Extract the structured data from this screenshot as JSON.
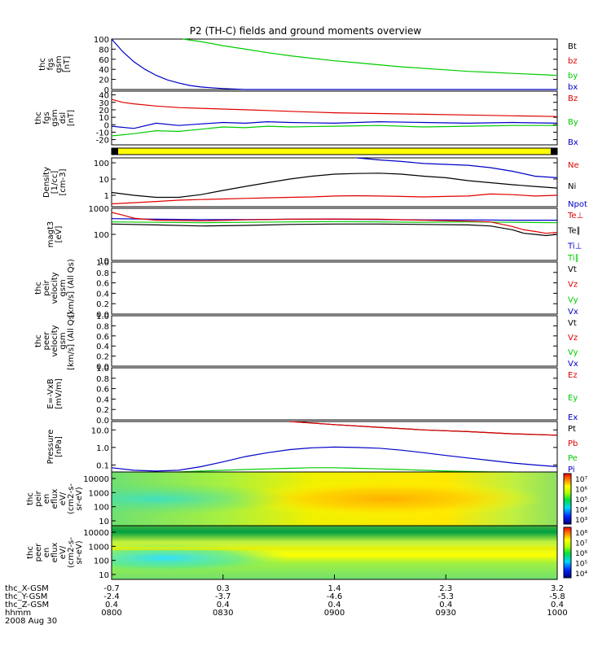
{
  "title": "P2 (TH-C) fields and ground moments overview",
  "colors": {
    "black": "#000000",
    "red": "#e00000",
    "green": "#00cc00",
    "blue": "#0000c8",
    "yellow": "#ffff00"
  },
  "chart_data": [
    {
      "type": "line",
      "label": "thc fgs gsm [nT]",
      "ylabel_lines": [
        "thc",
        "fgs",
        "gsm",
        "[nT]"
      ],
      "ylim": [
        0,
        100
      ],
      "yticks": [
        "100",
        "80",
        "60",
        "40",
        "20",
        "0"
      ],
      "ytick_vals": [
        100,
        80,
        60,
        40,
        20,
        0
      ],
      "legend": [
        {
          "text": "Bt",
          "color": "#000000"
        },
        {
          "text": "bz",
          "color": "#e00000"
        },
        {
          "text": "by",
          "color": "#00cc00"
        },
        {
          "text": "bx",
          "color": "#0000c8"
        }
      ],
      "series": [
        {
          "name": "by",
          "color": "#00cc00",
          "x": [
            0.32,
            0.4,
            0.5,
            0.6,
            0.7,
            0.8,
            0.9,
            1.0,
            1.1,
            1.2,
            1.3,
            1.4,
            1.5,
            1.6,
            1.7,
            1.8,
            1.9,
            2.0
          ],
          "y": [
            100,
            95,
            87,
            80,
            73,
            67,
            62,
            57,
            53,
            49,
            45,
            42,
            39,
            36,
            34,
            32,
            30,
            28
          ]
        },
        {
          "name": "bx",
          "color": "#0000c8",
          "x": [
            0.0,
            0.05,
            0.1,
            0.15,
            0.2,
            0.25,
            0.3,
            0.35,
            0.4,
            0.5,
            0.6,
            0.8,
            1.0,
            1.5,
            2.0
          ],
          "y": [
            100,
            75,
            55,
            40,
            28,
            19,
            13,
            8,
            5,
            2,
            0,
            -1,
            -1,
            -1,
            -1
          ]
        }
      ]
    },
    {
      "type": "line",
      "label": "thc fgs gsm dsl [nT]",
      "ylabel_lines": [
        "thc",
        "fgs",
        "gsm",
        "dsl",
        "[nT]"
      ],
      "ylim": [
        -27,
        45
      ],
      "yticks": [
        "40",
        "30",
        "20",
        "10",
        "0",
        "-10",
        "-20"
      ],
      "ytick_vals": [
        40,
        30,
        20,
        10,
        0,
        -10,
        -20
      ],
      "legend": [
        {
          "text": "Bz",
          "color": "#e00000"
        },
        {
          "text": "By",
          "color": "#00cc00"
        },
        {
          "text": "Bx",
          "color": "#0000c8"
        }
      ],
      "series": [
        {
          "name": "Bz",
          "color": "#e00000",
          "x": [
            0.0,
            0.05,
            0.1,
            0.2,
            0.3,
            0.4,
            0.5,
            0.6,
            0.7,
            0.8,
            0.9,
            1.0,
            1.2,
            1.4,
            1.6,
            1.8,
            2.0
          ],
          "y": [
            34,
            30,
            28,
            25,
            23,
            22,
            21,
            20,
            19,
            18,
            17,
            16,
            15,
            14,
            13,
            12,
            11
          ]
        },
        {
          "name": "By",
          "color": "#00cc00",
          "x": [
            0.0,
            0.1,
            0.2,
            0.3,
            0.4,
            0.5,
            0.6,
            0.7,
            0.8,
            1.0,
            1.2,
            1.4,
            1.6,
            1.8,
            2.0
          ],
          "y": [
            -15,
            -12,
            -8,
            -9,
            -6,
            -3,
            -4,
            -2,
            -3,
            -2,
            -1,
            -3,
            -2,
            -1,
            -1
          ]
        },
        {
          "name": "Bx",
          "color": "#0000c8",
          "x": [
            0.0,
            0.1,
            0.2,
            0.3,
            0.4,
            0.5,
            0.6,
            0.7,
            0.8,
            1.0,
            1.2,
            1.4,
            1.6,
            1.8,
            2.0
          ],
          "y": [
            -2,
            -5,
            2,
            -1,
            1,
            3,
            2,
            4,
            3,
            2,
            4,
            3,
            2,
            3,
            2
          ]
        }
      ]
    },
    {
      "type": "line",
      "label": "Density [1/cc] [cm-3]",
      "log": true,
      "ylabel_lines": [
        "Density",
        "[1/cc]",
        "[cm-3]"
      ],
      "ylim": [
        0.2,
        200
      ],
      "yticks": [
        "100",
        "10",
        "1"
      ],
      "ytick_vals": [
        100,
        10,
        1
      ],
      "legend": [
        {
          "text": "Ne",
          "color": "#e00000"
        },
        {
          "text": "Ni",
          "color": "#000000"
        },
        {
          "text": "Npot",
          "color": "#0000c8"
        }
      ],
      "series": [
        {
          "name": "Ni",
          "color": "#000000",
          "x": [
            0.0,
            0.1,
            0.2,
            0.3,
            0.4,
            0.5,
            0.6,
            0.7,
            0.8,
            0.9,
            1.0,
            1.1,
            1.2,
            1.3,
            1.4,
            1.5,
            1.6,
            1.7,
            1.8,
            1.9,
            2.0
          ],
          "y": [
            1.5,
            1.0,
            0.75,
            0.75,
            1.1,
            2.0,
            3.5,
            6,
            10,
            15,
            20,
            22,
            23,
            20,
            15,
            12,
            8,
            6,
            4.5,
            3.5,
            2.8
          ]
        },
        {
          "name": "Ne",
          "color": "#e00000",
          "x": [
            0.0,
            0.1,
            0.2,
            0.3,
            0.4,
            0.5,
            0.6,
            0.7,
            0.8,
            0.9,
            1.0,
            1.1,
            1.2,
            1.3,
            1.4,
            1.5,
            1.6,
            1.7,
            1.8,
            1.9,
            2.0
          ],
          "y": [
            0.3,
            0.35,
            0.42,
            0.5,
            0.55,
            0.6,
            0.65,
            0.7,
            0.75,
            0.8,
            0.9,
            0.95,
            0.9,
            0.85,
            0.8,
            0.85,
            0.9,
            1.2,
            1.1,
            0.9,
            1.0
          ]
        },
        {
          "name": "Npot",
          "color": "#0000c8",
          "x": [
            1.1,
            1.2,
            1.3,
            1.4,
            1.5,
            1.6,
            1.7,
            1.8,
            1.9,
            2.0
          ],
          "y": [
            200,
            150,
            120,
            90,
            80,
            70,
            50,
            30,
            15,
            12
          ]
        }
      ]
    },
    {
      "type": "line",
      "label": "magt3 [eV]",
      "log": true,
      "ylabel_lines": [
        "magt3",
        "[eV]"
      ],
      "ylim": [
        10,
        1000
      ],
      "yticks": [
        "1000",
        "100",
        "10"
      ],
      "ytick_vals": [
        1000,
        100,
        10
      ],
      "legend": [
        {
          "text": "Te⊥",
          "color": "#e00000"
        },
        {
          "text": "Te∥",
          "color": "#000000"
        },
        {
          "text": "Ti⊥",
          "color": "#0000c8"
        },
        {
          "text": "Ti∥",
          "color": "#00cc00"
        }
      ],
      "series": [
        {
          "name": "Ti⊥",
          "color": "#0000c8",
          "x": [
            0.0,
            0.2,
            0.4,
            0.6,
            0.8,
            1.0,
            1.2,
            1.4,
            1.6,
            1.8,
            2.0
          ],
          "y": [
            400,
            380,
            370,
            370,
            380,
            380,
            370,
            360,
            360,
            350,
            350
          ]
        },
        {
          "name": "Ti∥",
          "color": "#00cc00",
          "x": [
            0.0,
            0.2,
            0.4,
            0.6,
            0.8,
            1.0,
            1.2,
            1.4,
            1.6,
            1.8,
            2.0
          ],
          "y": [
            300,
            290,
            280,
            290,
            300,
            310,
            300,
            290,
            300,
            290,
            280
          ]
        },
        {
          "name": "Te⊥",
          "color": "#e00000",
          "x": [
            0.0,
            0.05,
            0.1,
            0.2,
            0.4,
            0.6,
            0.8,
            1.0,
            1.2,
            1.4,
            1.6,
            1.7,
            1.8,
            1.85,
            1.9,
            1.95,
            2.0
          ],
          "y": [
            700,
            550,
            420,
            350,
            330,
            360,
            380,
            390,
            380,
            350,
            320,
            300,
            200,
            150,
            130,
            110,
            120
          ]
        },
        {
          "name": "Te∥",
          "color": "#000000",
          "x": [
            0.0,
            0.2,
            0.4,
            0.6,
            0.8,
            1.0,
            1.2,
            1.4,
            1.6,
            1.7,
            1.8,
            1.85,
            1.9,
            1.95,
            2.0
          ],
          "y": [
            250,
            230,
            210,
            220,
            240,
            250,
            250,
            240,
            230,
            210,
            150,
            110,
            100,
            90,
            100
          ]
        }
      ]
    },
    {
      "type": "line",
      "label": "thc peir velocity gsm [km/s] (All Qs)",
      "ylabel_lines": [
        "thc",
        "peir",
        "velocity",
        "gsm",
        "[km/s] (All Qs)"
      ],
      "ylim": [
        0,
        1
      ],
      "yticks": [
        "1.0",
        "0.8",
        "0.6",
        "0.4",
        "0.2",
        "0.0"
      ],
      "ytick_vals": [
        1,
        0.8,
        0.6,
        0.4,
        0.2,
        0
      ],
      "legend": [
        {
          "text": "Vt",
          "color": "#000000"
        },
        {
          "text": "Vz",
          "color": "#e00000"
        },
        {
          "text": "Vy",
          "color": "#00cc00"
        },
        {
          "text": "Vx",
          "color": "#0000c8"
        }
      ],
      "series": []
    },
    {
      "type": "line",
      "label": "thc peer velocity gsm [km/s] (All Qs)",
      "ylabel_lines": [
        "thc",
        "peer",
        "velocity",
        "gsm",
        "[km/s] (All Qs)"
      ],
      "ylim": [
        0,
        1
      ],
      "yticks": [
        "1.0",
        "0.8",
        "0.6",
        "0.4",
        "0.2",
        "0.0"
      ],
      "ytick_vals": [
        1,
        0.8,
        0.6,
        0.4,
        0.2,
        0
      ],
      "legend": [
        {
          "text": "Vt",
          "color": "#000000"
        },
        {
          "text": "Vz",
          "color": "#e00000"
        },
        {
          "text": "Vy",
          "color": "#00cc00"
        },
        {
          "text": "Vx",
          "color": "#0000c8"
        }
      ],
      "series": []
    },
    {
      "type": "line",
      "label": "E=-VxB [mV/m]",
      "ylabel_lines": [
        "E=-VxB",
        "[mV/m]"
      ],
      "ylim": [
        0,
        1
      ],
      "yticks": [
        "1.0",
        "0.8",
        "0.6",
        "0.4",
        "0.2",
        "0.0"
      ],
      "ytick_vals": [
        1,
        0.8,
        0.6,
        0.4,
        0.2,
        0
      ],
      "legend": [
        {
          "text": "Ez",
          "color": "#e00000"
        },
        {
          "text": "Ey",
          "color": "#00cc00"
        },
        {
          "text": "Ex",
          "color": "#0000c8"
        }
      ],
      "series": []
    },
    {
      "type": "line",
      "label": "Pressure [nPa]",
      "log": true,
      "ylabel_lines": [
        "Pressure",
        "[nPa]"
      ],
      "ylim": [
        0.04,
        30
      ],
      "yticks": [
        "10.0",
        "1.0",
        "0.1"
      ],
      "ytick_vals": [
        10,
        1,
        0.1
      ],
      "legend": [
        {
          "text": "Pt",
          "color": "#000000"
        },
        {
          "text": "Pb",
          "color": "#e00000"
        },
        {
          "text": "Pe",
          "color": "#00cc00"
        },
        {
          "text": "Pi",
          "color": "#0000c8"
        }
      ],
      "series": [
        {
          "name": "Pt",
          "color": "#000000",
          "x": [
            0.8,
            1.0,
            1.2,
            1.4,
            1.6,
            1.8,
            2.0
          ],
          "y": [
            30,
            20,
            14,
            10,
            8,
            6,
            5
          ]
        },
        {
          "name": "Pb",
          "color": "#e00000",
          "x": [
            0.8,
            1.0,
            1.2,
            1.4,
            1.6,
            1.8,
            2.0
          ],
          "y": [
            30,
            20,
            14,
            10,
            8,
            6,
            5
          ]
        },
        {
          "name": "Pi",
          "color": "#0000c8",
          "x": [
            0.0,
            0.1,
            0.2,
            0.3,
            0.4,
            0.5,
            0.6,
            0.7,
            0.8,
            0.9,
            1.0,
            1.1,
            1.2,
            1.3,
            1.4,
            1.5,
            1.6,
            1.7,
            1.8,
            1.9,
            2.0
          ],
          "y": [
            0.07,
            0.05,
            0.045,
            0.05,
            0.08,
            0.15,
            0.3,
            0.5,
            0.75,
            0.95,
            1.05,
            1.0,
            0.9,
            0.7,
            0.5,
            0.35,
            0.25,
            0.18,
            0.13,
            0.1,
            0.08
          ]
        },
        {
          "name": "Pe",
          "color": "#00cc00",
          "x": [
            0.3,
            0.4,
            0.5,
            0.6,
            0.7,
            0.8,
            0.9,
            1.0,
            1.1,
            1.2,
            1.3,
            1.4,
            1.5,
            1.6,
            1.7,
            1.8
          ],
          "y": [
            0.04,
            0.045,
            0.05,
            0.055,
            0.06,
            0.065,
            0.07,
            0.07,
            0.065,
            0.06,
            0.055,
            0.05,
            0.045,
            0.043,
            0.041,
            0.04
          ]
        }
      ]
    },
    {
      "type": "heatmap",
      "label": "thc peir en eflux eV/(cm2-s-sr-eV)",
      "ylabel_lines": [
        "thc",
        "peir",
        "en",
        "eflux",
        "eV/",
        "(cm2-s-",
        "sr-eV)"
      ],
      "yticks": [
        "10000",
        "1000",
        "100",
        "10"
      ],
      "colorbar_ticks": [
        "10⁷",
        "10⁶",
        "10⁵",
        "10⁴",
        "10³"
      ]
    },
    {
      "type": "heatmap",
      "label": "thc peer en eflux eV/(cm2-s-sr-eV)",
      "ylabel_lines": [
        "thc",
        "peer",
        "en",
        "eflux",
        "eV/",
        "(cm2-s-",
        "sr-eV)"
      ],
      "yticks": [
        "10000",
        "1000",
        "100",
        "10"
      ],
      "colorbar_ticks": [
        "10⁸",
        "10⁷",
        "10⁶",
        "10⁵",
        "10⁴"
      ]
    }
  ],
  "xaxis": {
    "row_labels": [
      "thc_X-GSM",
      "thc_Y-GSM",
      "thc_Z-GSM",
      "hhmm",
      "2008 Aug 30"
    ],
    "x_gsm": [
      "-0.7",
      "0.3",
      "1.4",
      "2.3",
      "3.2"
    ],
    "y_gsm": [
      "-2.4",
      "-3.7",
      "-4.6",
      "-5.3",
      "-5.8"
    ],
    "z_gsm": [
      "0.4",
      "0.4",
      "0.4",
      "0.4",
      "0.4"
    ],
    "hhmm": [
      "0800",
      "0830",
      "0900",
      "0930",
      "1000"
    ]
  }
}
